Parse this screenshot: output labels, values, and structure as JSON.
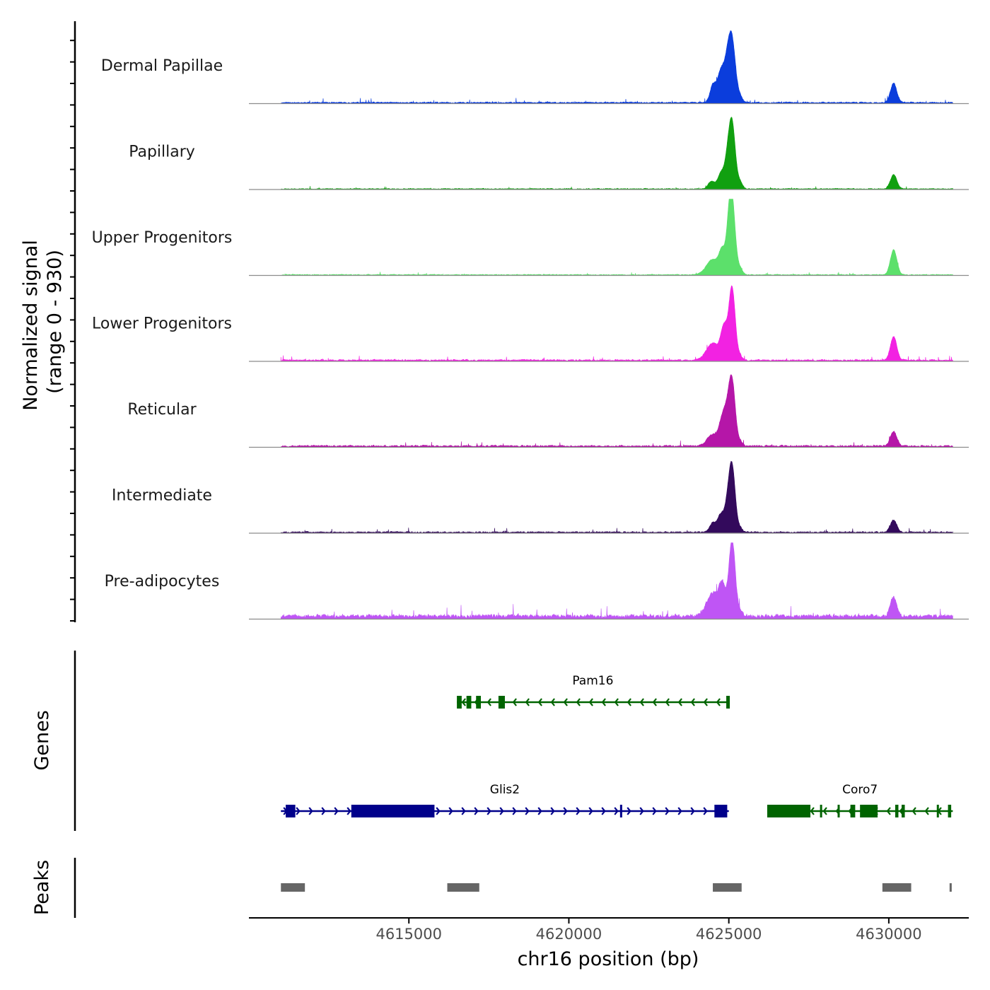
{
  "chart_data": {
    "type": "area",
    "y_axis_title_line1": "Normalized signal",
    "y_axis_title_line2": "(range 0 - 930)",
    "y_range": [
      0,
      930
    ],
    "xlabel": "chr16 position (bp)",
    "xlim": [
      4610000,
      4632500
    ],
    "x_ticks": [
      4615000,
      4620000,
      4625000,
      4630000
    ],
    "x_tick_labels": [
      "4615000",
      "4620000",
      "4625000",
      "4630000"
    ],
    "signal_range": [
      4611000,
      4632000
    ],
    "tracks": [
      {
        "name": "Dermal Papillae",
        "color": "#0b3ddc",
        "peaks": [
          {
            "center": 4624500,
            "width": 90,
            "height": 0.22
          },
          {
            "center": 4624750,
            "width": 110,
            "height": 0.4
          },
          {
            "center": 4624950,
            "width": 100,
            "height": 0.37
          },
          {
            "center": 4625100,
            "width": 110,
            "height": 0.78
          },
          {
            "center": 4625350,
            "width": 80,
            "height": 0.07
          },
          {
            "center": 4630150,
            "width": 100,
            "height": 0.25
          }
        ],
        "background": {
          "seed": 11,
          "level": 0.018
        }
      },
      {
        "name": "Papillary",
        "color": "#11a010",
        "peaks": [
          {
            "center": 4624450,
            "width": 100,
            "height": 0.1
          },
          {
            "center": 4624750,
            "width": 100,
            "height": 0.2
          },
          {
            "center": 4624950,
            "width": 90,
            "height": 0.3
          },
          {
            "center": 4625100,
            "width": 100,
            "height": 0.85
          },
          {
            "center": 4625350,
            "width": 80,
            "height": 0.09
          },
          {
            "center": 4630150,
            "width": 100,
            "height": 0.19
          }
        ],
        "background": {
          "seed": 23,
          "level": 0.012
        }
      },
      {
        "name": "Upper Progenitors",
        "color": "#5ce06b",
        "peaks": [
          {
            "center": 4624500,
            "width": 200,
            "height": 0.2
          },
          {
            "center": 4624800,
            "width": 100,
            "height": 0.28
          },
          {
            "center": 4625000,
            "width": 80,
            "height": 0.34
          },
          {
            "center": 4625100,
            "width": 100,
            "height": 0.95
          },
          {
            "center": 4625350,
            "width": 80,
            "height": 0.08
          },
          {
            "center": 4630150,
            "width": 100,
            "height": 0.33
          }
        ],
        "background": {
          "seed": 37,
          "level": 0.012
        }
      },
      {
        "name": "Lower Progenitors",
        "color": "#f222e2",
        "peaks": [
          {
            "center": 4624500,
            "width": 200,
            "height": 0.22
          },
          {
            "center": 4624850,
            "width": 100,
            "height": 0.4
          },
          {
            "center": 4625100,
            "width": 100,
            "height": 0.95
          },
          {
            "center": 4625350,
            "width": 80,
            "height": 0.05
          },
          {
            "center": 4630150,
            "width": 100,
            "height": 0.31
          }
        ],
        "background": {
          "seed": 41,
          "level": 0.02
        }
      },
      {
        "name": "Reticular",
        "color": "#b516a8",
        "peaks": [
          {
            "center": 4624500,
            "width": 180,
            "height": 0.15
          },
          {
            "center": 4624800,
            "width": 100,
            "height": 0.33
          },
          {
            "center": 4624950,
            "width": 90,
            "height": 0.28
          },
          {
            "center": 4625100,
            "width": 100,
            "height": 0.85
          },
          {
            "center": 4625350,
            "width": 80,
            "height": 0.06
          },
          {
            "center": 4630150,
            "width": 100,
            "height": 0.19
          }
        ],
        "background": {
          "seed": 53,
          "level": 0.022
        }
      },
      {
        "name": "Intermediate",
        "color": "#330a5c",
        "peaks": [
          {
            "center": 4624500,
            "width": 100,
            "height": 0.12
          },
          {
            "center": 4624750,
            "width": 100,
            "height": 0.22
          },
          {
            "center": 4624950,
            "width": 90,
            "height": 0.26
          },
          {
            "center": 4625100,
            "width": 100,
            "height": 0.85
          },
          {
            "center": 4625350,
            "width": 80,
            "height": 0.05
          },
          {
            "center": 4630150,
            "width": 100,
            "height": 0.16
          }
        ],
        "background": {
          "seed": 67,
          "level": 0.018
        }
      },
      {
        "name": "Pre-adipocytes",
        "color": "#bf55f5",
        "peaks": [
          {
            "center": 4624500,
            "width": 200,
            "height": 0.3
          },
          {
            "center": 4624800,
            "width": 100,
            "height": 0.35
          },
          {
            "center": 4625100,
            "width": 100,
            "height": 1.0
          },
          {
            "center": 4625350,
            "width": 80,
            "height": 0.06
          },
          {
            "center": 4630150,
            "width": 100,
            "height": 0.25
          }
        ],
        "background": {
          "seed": 79,
          "level": 0.05
        }
      }
    ],
    "genes_panel_title": "Genes",
    "genes": [
      {
        "name": "Pam16",
        "strand": "-",
        "color": "#006400",
        "row": 0,
        "start": 4616500,
        "end": 4625000,
        "exons": [
          [
            4616500,
            4616650
          ],
          [
            4616800,
            4616950
          ],
          [
            4617100,
            4617250
          ],
          [
            4617800,
            4618000
          ],
          [
            4624920,
            4625030
          ]
        ]
      },
      {
        "name": "Glis2",
        "strand": "+",
        "color": "#00008b",
        "row": 1,
        "start": 4611000,
        "end": 4625000,
        "exons": [
          [
            4611150,
            4611450
          ],
          [
            4613200,
            4615800
          ],
          [
            4621600,
            4621650
          ],
          [
            4624550,
            4624950
          ]
        ]
      },
      {
        "name": "Coro7",
        "strand": "-",
        "color": "#006400",
        "row": 1,
        "start": 4626200,
        "end": 4632000,
        "exons": [
          [
            4626200,
            4627550
          ],
          [
            4627850,
            4627900
          ],
          [
            4628400,
            4628450
          ],
          [
            4628800,
            4628950
          ],
          [
            4629100,
            4629650
          ],
          [
            4630200,
            4630300
          ],
          [
            4630400,
            4630500
          ],
          [
            4631500,
            4631550
          ],
          [
            4631850,
            4631950
          ]
        ]
      }
    ],
    "peaks_panel_title": "Peaks",
    "called_peaks": [
      [
        4611000,
        4611750
      ],
      [
        4616200,
        4617200
      ],
      [
        4624500,
        4625400
      ],
      [
        4629800,
        4630700
      ],
      [
        4631900,
        4631950
      ]
    ]
  }
}
